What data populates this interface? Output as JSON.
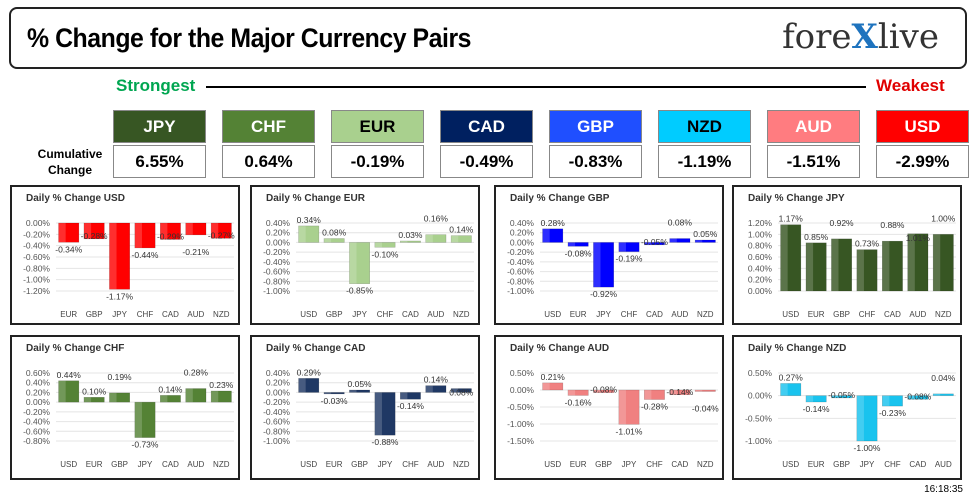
{
  "header": {
    "title": "% Change for the Major Currency Pairs",
    "logo_text": "forexlive"
  },
  "scale": {
    "strongest": "Strongest",
    "weakest": "Weakest",
    "row_label": "Cumulative Change"
  },
  "currencies": [
    {
      "code": "JPY",
      "value": "6.55%",
      "color": "#375623",
      "text": "#fff"
    },
    {
      "code": "CHF",
      "value": "0.64%",
      "color": "#548235",
      "text": "#fff"
    },
    {
      "code": "EUR",
      "value": "-0.19%",
      "color": "#a9d08e",
      "text": "#000"
    },
    {
      "code": "CAD",
      "value": "-0.49%",
      "color": "#002060",
      "text": "#fff"
    },
    {
      "code": "GBP",
      "value": "-0.83%",
      "color": "#1f4fff",
      "text": "#fff"
    },
    {
      "code": "NZD",
      "value": "-1.19%",
      "color": "#00ccff",
      "text": "#000"
    },
    {
      "code": "AUD",
      "value": "-1.51%",
      "color": "#ff7c80",
      "text": "#fff"
    },
    {
      "code": "USD",
      "value": "-2.99%",
      "color": "#ff0000",
      "text": "#fff"
    }
  ],
  "timestamp": "16:18:35",
  "chart_data": [
    {
      "type": "bar",
      "title": "Daily % Change USD",
      "categories": [
        "EUR",
        "GBP",
        "JPY",
        "CHF",
        "CAD",
        "AUD",
        "NZD"
      ],
      "values": [
        -0.34,
        -0.28,
        -1.17,
        -0.44,
        -0.29,
        -0.21,
        -0.27
      ],
      "ylim": [
        -1.2,
        0
      ],
      "ticks": [
        0,
        -0.2,
        -0.4,
        -0.6,
        -0.8,
        -1.0,
        -1.2
      ],
      "color": "#ff0000"
    },
    {
      "type": "bar",
      "title": "Daily % Change EUR",
      "categories": [
        "USD",
        "GBP",
        "JPY",
        "CHF",
        "CAD",
        "AUD",
        "NZD"
      ],
      "values": [
        0.34,
        0.08,
        -0.85,
        -0.1,
        0.03,
        0.16,
        0.14
      ],
      "ylim": [
        -1.0,
        0.4
      ],
      "ticks": [
        0.4,
        0.2,
        0,
        -0.2,
        -0.4,
        -0.6,
        -0.8,
        -1.0
      ],
      "color": "#a9d08e"
    },
    {
      "type": "bar",
      "title": "Daily % Change GBP",
      "categories": [
        "USD",
        "EUR",
        "JPY",
        "CHF",
        "CAD",
        "AUD",
        "NZD"
      ],
      "values": [
        0.28,
        -0.08,
        -0.92,
        -0.19,
        -0.05,
        0.08,
        0.05
      ],
      "ylim": [
        -1.0,
        0.4
      ],
      "ticks": [
        0.4,
        0.2,
        0,
        -0.2,
        -0.4,
        -0.6,
        -0.8,
        -1.0
      ],
      "color": "#0000ff"
    },
    {
      "type": "bar",
      "title": "Daily % Change JPY",
      "categories": [
        "USD",
        "EUR",
        "GBP",
        "CHF",
        "CAD",
        "AUD",
        "NZD"
      ],
      "values": [
        1.17,
        0.85,
        0.92,
        0.73,
        0.88,
        1.01,
        1.0
      ],
      "ylim": [
        0,
        1.2
      ],
      "ticks": [
        1.2,
        1.0,
        0.8,
        0.6,
        0.4,
        0.2,
        0
      ],
      "color": "#375623"
    },
    {
      "type": "bar",
      "title": "Daily % Change CHF",
      "categories": [
        "USD",
        "EUR",
        "GBP",
        "JPY",
        "CAD",
        "AUD",
        "NZD"
      ],
      "values": [
        0.44,
        0.1,
        0.19,
        -0.73,
        0.14,
        0.28,
        0.23
      ],
      "ylim": [
        -0.8,
        0.6
      ],
      "ticks": [
        0.6,
        0.4,
        0.2,
        0,
        -0.2,
        -0.4,
        -0.6,
        -0.8
      ],
      "color": "#548235"
    },
    {
      "type": "bar",
      "title": "Daily % Change CAD",
      "categories": [
        "USD",
        "EUR",
        "GBP",
        "JPY",
        "CHF",
        "AUD",
        "NZD"
      ],
      "values": [
        0.29,
        -0.03,
        0.05,
        -0.88,
        -0.14,
        0.14,
        0.08
      ],
      "ylim": [
        -1.0,
        0.4
      ],
      "ticks": [
        0.4,
        0.2,
        0,
        -0.2,
        -0.4,
        -0.6,
        -0.8,
        -1.0
      ],
      "color": "#1f3864"
    },
    {
      "type": "bar",
      "title": "Daily % Change AUD",
      "categories": [
        "USD",
        "EUR",
        "GBP",
        "JPY",
        "CHF",
        "CAD",
        "NZD"
      ],
      "values": [
        0.21,
        -0.16,
        -0.08,
        -1.01,
        -0.28,
        -0.14,
        -0.04
      ],
      "ylim": [
        -1.5,
        0.5
      ],
      "ticks": [
        0.5,
        0,
        -0.5,
        -1.0,
        -1.5
      ],
      "color": "#f08080"
    },
    {
      "type": "bar",
      "title": "Daily % Change NZD",
      "categories": [
        "USD",
        "EUR",
        "GBP",
        "JPY",
        "CHF",
        "CAD",
        "AUD"
      ],
      "values": [
        0.27,
        -0.14,
        -0.05,
        -1.0,
        -0.23,
        -0.08,
        0.04
      ],
      "ylim": [
        -1.0,
        0.5
      ],
      "ticks": [
        0.5,
        0,
        -0.5,
        -1.0
      ],
      "color": "#19c3ee"
    }
  ]
}
